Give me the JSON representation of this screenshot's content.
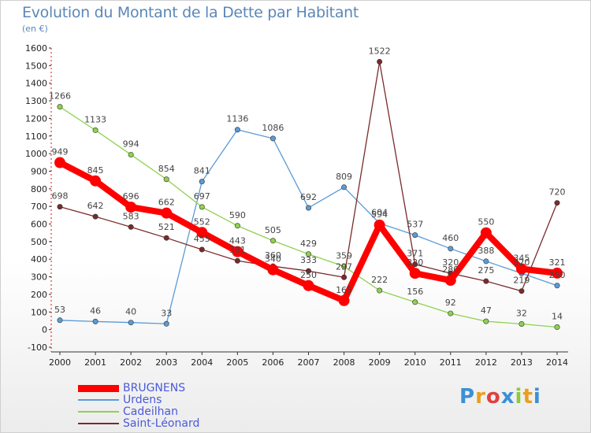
{
  "title": "Evolution du Montant de la Dette par Habitant",
  "subtitle": "(en €)",
  "brand": "Proxiti",
  "chart_data": {
    "type": "line",
    "x": [
      "2000",
      "2001",
      "2002",
      "2003",
      "2004",
      "2005",
      "2006",
      "2007",
      "2008",
      "2009",
      "2010",
      "2011",
      "2012",
      "2013",
      "2014"
    ],
    "ylim": [
      -100,
      1600
    ],
    "yticks": [
      -100,
      0,
      100,
      200,
      300,
      400,
      500,
      600,
      700,
      800,
      900,
      1000,
      1100,
      1200,
      1300,
      1400,
      1500,
      1600
    ],
    "grid": false,
    "legend_position": "bottom-left",
    "series": [
      {
        "name": "BRUGNENS",
        "color": "#ff0000",
        "thick": true,
        "values": [
          949,
          845,
          696,
          662,
          552,
          443,
          340,
          250,
          165,
          594,
          320,
          280,
          550,
          345,
          321
        ],
        "labels": [
          "949",
          "845",
          "696",
          "662",
          "552",
          "443",
          "340",
          "250",
          "165",
          "594",
          "320",
          "280",
          "550",
          "345",
          "321"
        ]
      },
      {
        "name": "Urdens",
        "color": "#5b9bd5",
        "thick": false,
        "values": [
          53,
          46,
          40,
          33,
          841,
          1136,
          1086,
          692,
          809,
          604,
          537,
          460,
          388,
          320,
          250
        ],
        "labels": [
          "53",
          "46",
          "40",
          "33",
          "841",
          "1136",
          "1086",
          "692",
          "809",
          "604",
          "537",
          "460",
          "388",
          "320",
          "250"
        ]
      },
      {
        "name": "Cadeilhan",
        "color": "#8fd14f",
        "thick": false,
        "values": [
          1266,
          1133,
          994,
          854,
          697,
          590,
          505,
          429,
          359,
          222,
          156,
          92,
          47,
          32,
          14
        ],
        "labels": [
          "1266",
          "1133",
          "994",
          "854",
          "697",
          "590",
          "505",
          "429",
          "359",
          "222",
          "156",
          "92",
          "47",
          "32",
          "14"
        ]
      },
      {
        "name": "Saint-Léonard",
        "color": "#7a2a2a",
        "thick": false,
        "values": [
          698,
          642,
          583,
          521,
          455,
          391,
          360,
          333,
          297,
          1522,
          371,
          320,
          275,
          219,
          720
        ],
        "labels": [
          "698",
          "642",
          "583",
          "521",
          "455",
          "391",
          "360",
          "333",
          "297",
          "1522",
          "371",
          "320",
          "275",
          "219",
          "720"
        ]
      }
    ]
  }
}
